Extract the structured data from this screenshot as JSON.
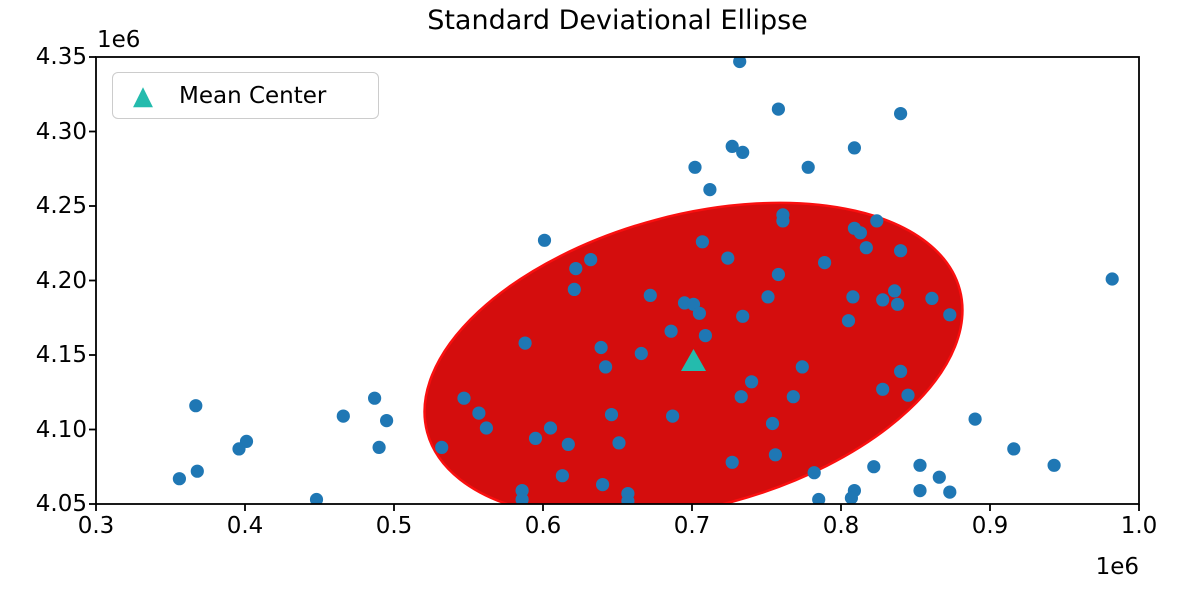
{
  "chart_data": {
    "type": "scatter",
    "title": "Standard Deviational Ellipse",
    "grid": false,
    "legend": {
      "label": "Mean Center",
      "marker": "triangle-up",
      "position": "upper-left"
    },
    "x_axis": {
      "min": 0.3,
      "max": 1.0,
      "tick_labels": [
        "0.3",
        "0.4",
        "0.5",
        "0.6",
        "0.7",
        "0.8",
        "0.9",
        "1.0"
      ],
      "offset_label": "1e6",
      "unit_multiplier": 1000000
    },
    "y_axis": {
      "min": 4.05,
      "max": 4.35,
      "tick_labels": [
        "4.35",
        "4.30",
        "4.25",
        "4.20",
        "4.15",
        "4.10",
        "4.05"
      ],
      "offset_label": "1e6",
      "unit_multiplier": 1000000
    },
    "mean_center": {
      "x": 0.701,
      "y": 4.146
    },
    "ellipse": {
      "center_x": 0.701,
      "center_y": 4.146,
      "semi_major_axis": 0.185,
      "semi_minor_axis": 0.098,
      "rotation_deg": 15
    },
    "points": [
      [
        0.732,
        4.347
      ],
      [
        0.758,
        4.315
      ],
      [
        0.727,
        4.29
      ],
      [
        0.734,
        4.286
      ],
      [
        0.702,
        4.276
      ],
      [
        0.712,
        4.261
      ],
      [
        0.761,
        4.244
      ],
      [
        0.761,
        4.24
      ],
      [
        0.601,
        4.227
      ],
      [
        0.707,
        4.226
      ],
      [
        0.724,
        4.215
      ],
      [
        0.632,
        4.214
      ],
      [
        0.622,
        4.208
      ],
      [
        0.758,
        4.204
      ],
      [
        0.84,
        4.312
      ],
      [
        0.809,
        4.289
      ],
      [
        0.778,
        4.276
      ],
      [
        0.824,
        4.24
      ],
      [
        0.809,
        4.235
      ],
      [
        0.813,
        4.232
      ],
      [
        0.817,
        4.222
      ],
      [
        0.84,
        4.22
      ],
      [
        0.789,
        4.212
      ],
      [
        0.982,
        4.201
      ],
      [
        0.367,
        4.116
      ],
      [
        0.466,
        4.109
      ],
      [
        0.487,
        4.121
      ],
      [
        0.495,
        4.106
      ],
      [
        0.401,
        4.092
      ],
      [
        0.396,
        4.087
      ],
      [
        0.49,
        4.088
      ],
      [
        0.356,
        4.067
      ],
      [
        0.368,
        4.072
      ],
      [
        0.448,
        4.053
      ],
      [
        0.532,
        4.088
      ],
      [
        0.621,
        4.194
      ],
      [
        0.672,
        4.19
      ],
      [
        0.695,
        4.185
      ],
      [
        0.701,
        4.184
      ],
      [
        0.705,
        4.178
      ],
      [
        0.734,
        4.176
      ],
      [
        0.751,
        4.189
      ],
      [
        0.686,
        4.166
      ],
      [
        0.709,
        4.163
      ],
      [
        0.588,
        4.158
      ],
      [
        0.639,
        4.155
      ],
      [
        0.666,
        4.151
      ],
      [
        0.642,
        4.142
      ],
      [
        0.547,
        4.121
      ],
      [
        0.557,
        4.111
      ],
      [
        0.562,
        4.101
      ],
      [
        0.74,
        4.132
      ],
      [
        0.733,
        4.122
      ],
      [
        0.646,
        4.11
      ],
      [
        0.687,
        4.109
      ],
      [
        0.605,
        4.101
      ],
      [
        0.595,
        4.094
      ],
      [
        0.617,
        4.09
      ],
      [
        0.651,
        4.091
      ],
      [
        0.754,
        4.104
      ],
      [
        0.756,
        4.083
      ],
      [
        0.727,
        4.078
      ],
      [
        0.613,
        4.069
      ],
      [
        0.64,
        4.063
      ],
      [
        0.657,
        4.057
      ],
      [
        0.586,
        4.059
      ],
      [
        0.586,
        4.053
      ],
      [
        0.657,
        4.052
      ],
      [
        0.768,
        4.122
      ],
      [
        0.808,
        4.189
      ],
      [
        0.828,
        4.187
      ],
      [
        0.836,
        4.193
      ],
      [
        0.838,
        4.184
      ],
      [
        0.861,
        4.188
      ],
      [
        0.805,
        4.173
      ],
      [
        0.873,
        4.177
      ],
      [
        0.774,
        4.142
      ],
      [
        0.84,
        4.139
      ],
      [
        0.828,
        4.127
      ],
      [
        0.845,
        4.123
      ],
      [
        0.89,
        4.107
      ],
      [
        0.916,
        4.087
      ],
      [
        0.943,
        4.076
      ],
      [
        0.822,
        4.075
      ],
      [
        0.853,
        4.076
      ],
      [
        0.866,
        4.068
      ],
      [
        0.853,
        4.059
      ],
      [
        0.873,
        4.058
      ],
      [
        0.809,
        4.059
      ],
      [
        0.807,
        4.054
      ],
      [
        0.782,
        4.071
      ],
      [
        0.785,
        4.053
      ]
    ],
    "colors": {
      "scatter_point": "#1f77b4",
      "ellipse_fill": "#d40d0d",
      "ellipse_edge": "#fa0f0f",
      "mean_center": "#24bbad",
      "axis": "#000000"
    }
  }
}
